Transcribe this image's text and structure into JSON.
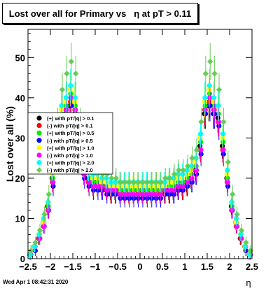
{
  "title": "Lost over all for Primary vs   η at pT > 0.11",
  "timestamp": "Wed Apr  1 08:42:31 2020",
  "chart_data": {
    "type": "scatter",
    "title": "Lost over all for Primary vs   η at pT > 0.11",
    "xlabel": "η",
    "ylabel": "Lost over all (%)",
    "xlim": [
      -2.5,
      2.5
    ],
    "ylim": [
      0,
      57
    ],
    "x_ticks": [
      -2.5,
      -2,
      -1.5,
      -1,
      -0.5,
      0,
      0.5,
      1,
      1.5,
      2,
      2.5
    ],
    "x_tick_labels": [
      "−2.5",
      "−2",
      "−1.5",
      "−1",
      "−0.5",
      "0",
      "0.5",
      "1",
      "1.5",
      "2",
      "2.5"
    ],
    "y_ticks": [
      0,
      10,
      20,
      30,
      40,
      50
    ],
    "y_tick_labels": [
      "0",
      "10",
      "20",
      "30",
      "40",
      "50"
    ],
    "grid": false,
    "legend_position": "left-middle",
    "x": [
      -2.45,
      -2.35,
      -2.25,
      -2.15,
      -2.05,
      -1.95,
      -1.85,
      -1.75,
      -1.65,
      -1.55,
      -1.45,
      -1.35,
      -1.25,
      -1.15,
      -1.05,
      -0.95,
      -0.85,
      -0.75,
      -0.65,
      -0.55,
      -0.45,
      -0.35,
      -0.25,
      -0.15,
      -0.05,
      0.05,
      0.15,
      0.25,
      0.35,
      0.45,
      0.55,
      0.65,
      0.75,
      0.85,
      0.95,
      1.05,
      1.15,
      1.25,
      1.35,
      1.45,
      1.55,
      1.65,
      1.75,
      1.85,
      1.95,
      2.05,
      2.15,
      2.25,
      2.35,
      2.45
    ],
    "series": [
      {
        "name": "(+) with pT/|q| > 0.1",
        "color": "#000000",
        "values": [
          1,
          3,
          5,
          9,
          13,
          20,
          28,
          35,
          36,
          38,
          36,
          28,
          22,
          20,
          19,
          19,
          18,
          18,
          17,
          17,
          17,
          17,
          17,
          17,
          17,
          17,
          17,
          17,
          17,
          17,
          17,
          17,
          17,
          18,
          18,
          19,
          20,
          22,
          28,
          36,
          38,
          36,
          35,
          28,
          20,
          13,
          9,
          5,
          3,
          1
        ]
      },
      {
        "name": "(-) with pT/|q| > 0.1",
        "color": "#ff0000",
        "values": [
          1,
          3,
          5,
          8,
          12,
          19,
          27,
          34,
          37,
          39,
          37,
          27,
          21,
          19,
          18,
          18,
          17,
          17,
          16,
          16,
          16,
          16,
          16,
          16,
          16,
          16,
          16,
          16,
          16,
          16,
          16,
          16,
          16,
          17,
          17,
          18,
          19,
          21,
          27,
          37,
          39,
          37,
          34,
          27,
          19,
          12,
          8,
          5,
          3,
          1
        ]
      },
      {
        "name": "(+) with pT/|q| > 0.5",
        "color": "#00ee00",
        "values": [
          1,
          3,
          6,
          9,
          13,
          20,
          29,
          36,
          38,
          41,
          38,
          29,
          22,
          20,
          19,
          19,
          19,
          18,
          18,
          17,
          17,
          17,
          17,
          17,
          17,
          17,
          17,
          17,
          17,
          17,
          17,
          18,
          18,
          19,
          19,
          20,
          21,
          23,
          29,
          38,
          41,
          38,
          36,
          29,
          20,
          13,
          9,
          6,
          3,
          1
        ]
      },
      {
        "name": "(-) with pT/|q| > 0.5",
        "color": "#0000ff",
        "values": [
          1,
          2,
          5,
          8,
          12,
          18,
          26,
          33,
          36,
          38,
          36,
          26,
          20,
          18,
          17,
          17,
          17,
          16,
          16,
          16,
          15,
          15,
          15,
          15,
          15,
          15,
          15,
          15,
          15,
          15,
          16,
          16,
          16,
          17,
          17,
          18,
          19,
          21,
          26,
          36,
          38,
          36,
          33,
          26,
          18,
          12,
          8,
          5,
          2,
          1
        ]
      },
      {
        "name": "(+) with pT/|q| > 1.0",
        "color": "#ffff00",
        "values": [
          1,
          3,
          6,
          9,
          14,
          21,
          30,
          37,
          39,
          42,
          39,
          30,
          23,
          21,
          20,
          20,
          19,
          19,
          18,
          18,
          18,
          18,
          18,
          18,
          18,
          18,
          18,
          18,
          18,
          18,
          18,
          19,
          19,
          20,
          20,
          21,
          22,
          24,
          30,
          39,
          42,
          39,
          37,
          30,
          21,
          14,
          9,
          6,
          3,
          1
        ]
      },
      {
        "name": "(-) with pT/|q| > 1.0",
        "color": "#ff00ff",
        "values": [
          1,
          3,
          5,
          8,
          12,
          19,
          27,
          34,
          37,
          40,
          37,
          27,
          21,
          19,
          18,
          18,
          18,
          17,
          17,
          17,
          16,
          16,
          16,
          16,
          16,
          16,
          16,
          16,
          16,
          16,
          17,
          17,
          17,
          18,
          18,
          19,
          20,
          22,
          27,
          37,
          40,
          37,
          34,
          27,
          19,
          12,
          8,
          5,
          3,
          1
        ]
      },
      {
        "name": "(+) with pT/|q| > 2.0",
        "color": "#00ffff",
        "values": [
          1,
          3,
          6,
          10,
          14,
          22,
          31,
          38,
          40,
          43,
          40,
          31,
          24,
          22,
          21,
          21,
          20,
          20,
          19,
          19,
          19,
          19,
          19,
          19,
          19,
          19,
          19,
          19,
          19,
          19,
          19,
          20,
          20,
          21,
          21,
          22,
          23,
          25,
          31,
          40,
          43,
          40,
          38,
          31,
          22,
          14,
          10,
          6,
          3,
          1
        ]
      },
      {
        "name": "(-) with pT/|q| > 2.0",
        "color": "#66cc55",
        "values": [
          2,
          4,
          7,
          11,
          16,
          24,
          34,
          42,
          46,
          49,
          46,
          34,
          26,
          24,
          22,
          22,
          21,
          21,
          20,
          20,
          19,
          19,
          19,
          19,
          19,
          19,
          19,
          19,
          19,
          19,
          20,
          20,
          21,
          22,
          22,
          23,
          25,
          27,
          34,
          46,
          49,
          46,
          42,
          34,
          24,
          16,
          11,
          7,
          4,
          2
        ]
      }
    ]
  }
}
